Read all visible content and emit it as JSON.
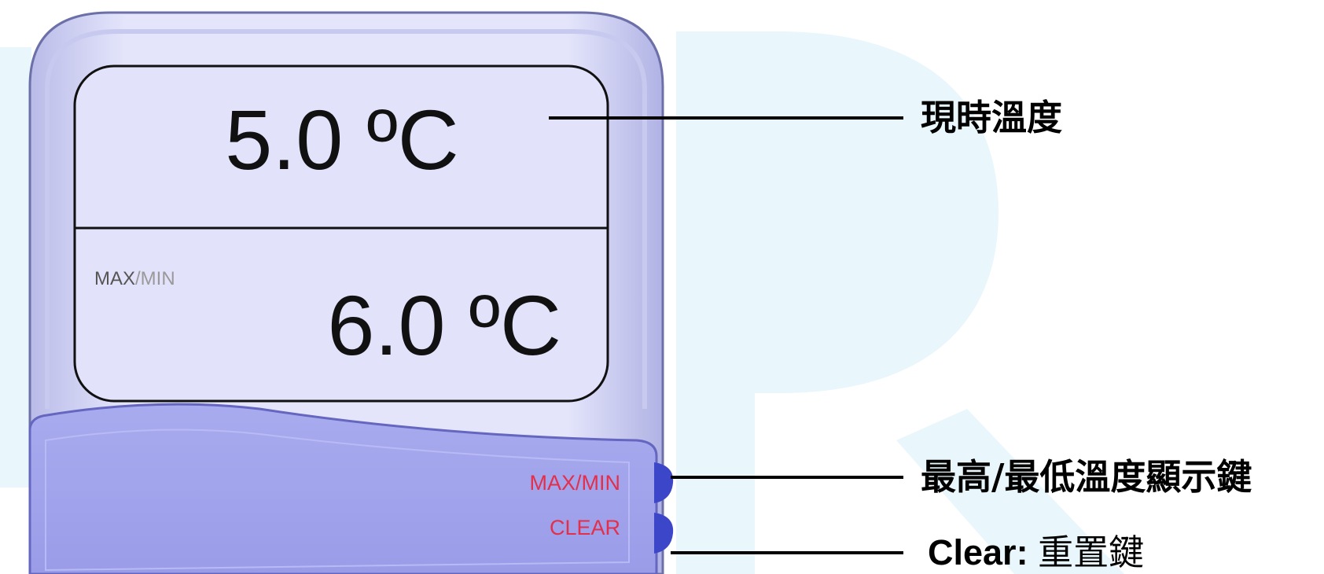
{
  "device": {
    "display": {
      "current_reading": "5.0 ºC",
      "mode_label": {
        "active": "MAX",
        "inactive": "/MIN"
      },
      "recorded_reading": "6.0 ºC"
    },
    "buttons": [
      "MAX/MIN",
      "CLEAR"
    ]
  },
  "callouts": {
    "current": "現時溫度",
    "max_min": "最高/最低溫度顯示鍵",
    "clear": {
      "term": "Clear:",
      "text": "重置鍵"
    }
  }
}
